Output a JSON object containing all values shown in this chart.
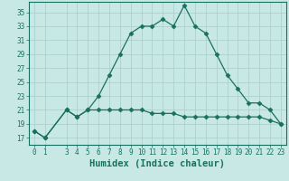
{
  "x": [
    0,
    1,
    3,
    4,
    5,
    6,
    7,
    8,
    9,
    10,
    11,
    12,
    13,
    14,
    15,
    16,
    17,
    18,
    19,
    20,
    21,
    22,
    23
  ],
  "y_main": [
    18,
    17,
    21,
    20,
    21,
    23,
    26,
    29,
    32,
    33,
    33,
    34,
    33,
    36,
    33,
    32,
    29,
    26,
    24,
    22,
    22,
    21,
    19
  ],
  "y_secondary": [
    18,
    17,
    21,
    20,
    21,
    21,
    21,
    21,
    21,
    21,
    20.5,
    20.5,
    20.5,
    20,
    20,
    20,
    20,
    20,
    20,
    20,
    20,
    19.5,
    19
  ],
  "line_color": "#1a7060",
  "bg_color": "#c8e8e5",
  "grid_color": "#a8cccb",
  "xlabel": "Humidex (Indice chaleur)",
  "ylabel_ticks": [
    17,
    19,
    21,
    23,
    25,
    27,
    29,
    31,
    33,
    35
  ],
  "ylim": [
    16,
    36.5
  ],
  "xlim": [
    -0.5,
    23.5
  ],
  "xticks": [
    0,
    1,
    3,
    4,
    5,
    6,
    7,
    8,
    9,
    10,
    11,
    12,
    13,
    14,
    15,
    16,
    17,
    18,
    19,
    20,
    21,
    22,
    23
  ],
  "xtick_labels": [
    "0",
    "1",
    "3",
    "4",
    "5",
    "6",
    "7",
    "8",
    "9",
    "10",
    "11",
    "12",
    "13",
    "14",
    "15",
    "16",
    "17",
    "18",
    "19",
    "20",
    "21",
    "22",
    "23"
  ],
  "markersize": 2.5,
  "linewidth": 0.9,
  "xlabel_fontsize": 7.5,
  "tick_fontsize": 5.5
}
